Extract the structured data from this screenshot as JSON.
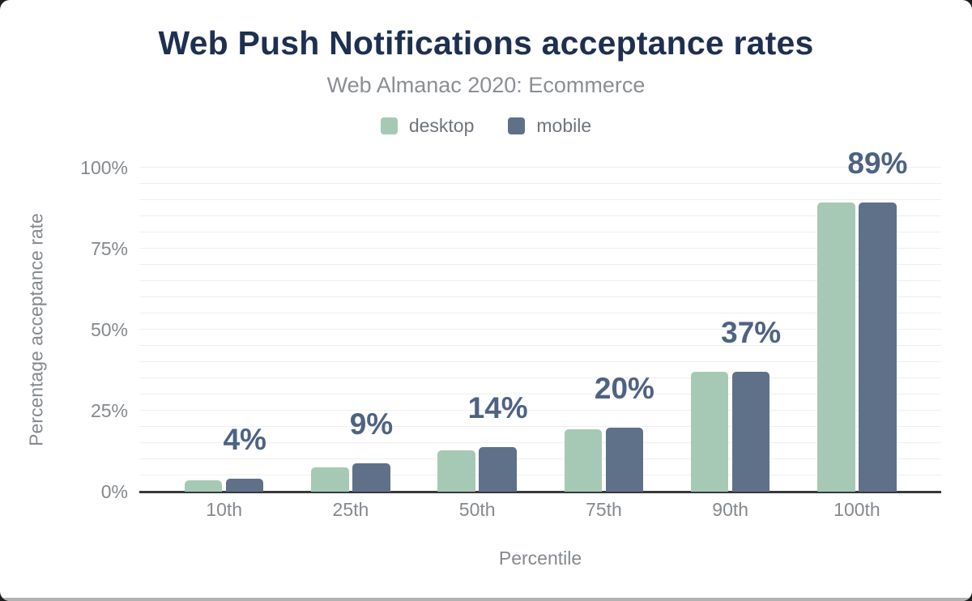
{
  "chart_data": {
    "type": "bar",
    "title": "Web Push Notifications acceptance rates",
    "subtitle": "Web Almanac 2020: Ecommerce",
    "xlabel": "Percentile",
    "ylabel": "Percentage acceptance rate",
    "categories": [
      "10th",
      "25th",
      "50th",
      "75th",
      "90th",
      "100th"
    ],
    "series": [
      {
        "name": "desktop",
        "color": "#a6c9b5",
        "values": [
          3.5,
          7.5,
          12.8,
          19.2,
          36.9,
          89.3
        ]
      },
      {
        "name": "mobile",
        "color": "#5f7189",
        "values": [
          3.9,
          8.7,
          13.7,
          19.8,
          37.0,
          89.3
        ]
      }
    ],
    "data_labels": [
      "4%",
      "9%",
      "14%",
      "20%",
      "37%",
      "89%"
    ],
    "y_ticks": [
      "0%",
      "25%",
      "50%",
      "75%",
      "100%"
    ],
    "ylim": [
      0,
      100
    ],
    "grid": "horizontal minor gridlines every 5%",
    "legend_position": "top"
  },
  "colors": {
    "title": "#1e3050",
    "subtitle": "#8b8f94",
    "axis_text": "#85898d",
    "legend_text": "#6e757b",
    "desktop_bar": "#a6c9b5",
    "mobile_bar": "#5f7189",
    "data_label": "#4e6383",
    "gridline": "#efefef",
    "axis_line": "#37393c"
  }
}
